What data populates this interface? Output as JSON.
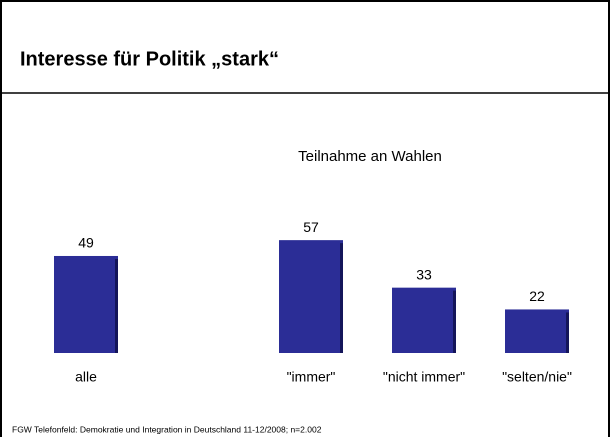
{
  "chart_data": {
    "type": "bar",
    "title": "Interesse für Politik „stark“",
    "subtitle": "Teilnahme an Wahlen",
    "categories": [
      "alle",
      "\"immer\"",
      "\"nicht immer\"",
      "\"selten/nie\""
    ],
    "values": [
      49,
      57,
      33,
      22
    ],
    "color": "#2b2d96",
    "source": "FGW Telefonfeld: Demokratie und Integration  in Deutschland 11-12/2008; n=2.002"
  }
}
